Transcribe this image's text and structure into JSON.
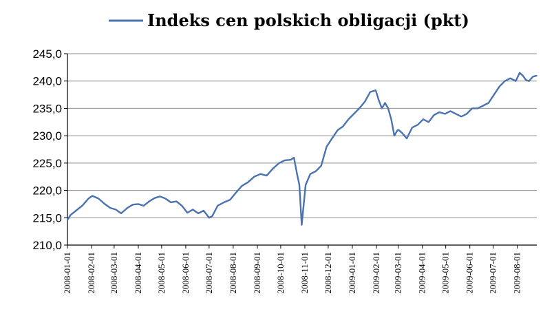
{
  "chart_data": {
    "type": "line",
    "title": "",
    "xlabel": "",
    "ylabel": "",
    "ylim": [
      210.0,
      245.0
    ],
    "y_ticks": [
      "210,0",
      "215,0",
      "220,0",
      "225,0",
      "230,0",
      "235,0",
      "240,0",
      "245,0"
    ],
    "x_ticks": [
      "2008-01-01",
      "2008-02-01",
      "2008-03-01",
      "2008-04-01",
      "2008-05-01",
      "2008-06-01",
      "2008-07-01",
      "2008-08-01",
      "2008-09-01",
      "2008-10-01",
      "2008-11-01",
      "2008-12-01",
      "2009-01-01",
      "2009-02-01",
      "2009-03-01",
      "2009-04-01",
      "2009-05-01",
      "2009-06-01",
      "2009-07-01",
      "2009-08-01"
    ],
    "grid": "horizontal",
    "legend": "top-center",
    "series": [
      {
        "name": "Indeks cen polskich obligacji (pkt)",
        "color": "#4a72b0",
        "x": [
          "2008-01-01",
          "2008-01-05",
          "2008-01-12",
          "2008-01-20",
          "2008-01-28",
          "2008-02-02",
          "2008-02-10",
          "2008-02-18",
          "2008-02-25",
          "2008-03-03",
          "2008-03-10",
          "2008-03-18",
          "2008-03-25",
          "2008-04-01",
          "2008-04-08",
          "2008-04-15",
          "2008-04-22",
          "2008-04-29",
          "2008-05-06",
          "2008-05-13",
          "2008-05-20",
          "2008-05-27",
          "2008-06-03",
          "2008-06-10",
          "2008-06-17",
          "2008-06-24",
          "2008-07-01",
          "2008-07-05",
          "2008-07-12",
          "2008-07-20",
          "2008-07-28",
          "2008-08-04",
          "2008-08-12",
          "2008-08-20",
          "2008-08-28",
          "2008-09-05",
          "2008-09-13",
          "2008-09-21",
          "2008-09-29",
          "2008-10-06",
          "2008-10-14",
          "2008-10-18",
          "2008-10-22",
          "2008-10-25",
          "2008-10-28",
          "2008-11-02",
          "2008-11-08",
          "2008-11-15",
          "2008-11-22",
          "2008-11-29",
          "2008-12-06",
          "2008-12-13",
          "2008-12-20",
          "2008-12-27",
          "2009-01-03",
          "2009-01-10",
          "2009-01-17",
          "2009-01-24",
          "2009-01-31",
          "2009-02-04",
          "2009-02-08",
          "2009-02-12",
          "2009-02-16",
          "2009-02-20",
          "2009-02-24",
          "2009-02-28",
          "2009-03-02",
          "2009-03-06",
          "2009-03-12",
          "2009-03-19",
          "2009-03-26",
          "2009-04-02",
          "2009-04-09",
          "2009-04-16",
          "2009-04-23",
          "2009-04-30",
          "2009-05-07",
          "2009-05-14",
          "2009-05-21",
          "2009-05-28",
          "2009-06-04",
          "2009-06-11",
          "2009-06-18",
          "2009-06-25",
          "2009-07-02",
          "2009-07-09",
          "2009-07-16",
          "2009-07-23",
          "2009-07-30",
          "2009-08-04",
          "2009-08-08",
          "2009-08-12",
          "2009-08-16",
          "2009-08-21",
          "2009-08-26"
        ],
        "values": [
          214.6,
          215.5,
          216.3,
          217.2,
          218.5,
          219.0,
          218.5,
          217.5,
          216.8,
          216.5,
          215.8,
          216.8,
          217.4,
          217.5,
          217.2,
          218.0,
          218.6,
          218.9,
          218.5,
          217.8,
          218.0,
          217.2,
          215.9,
          216.5,
          215.8,
          216.3,
          215.0,
          215.3,
          217.2,
          217.8,
          218.3,
          219.5,
          220.8,
          221.5,
          222.5,
          223.0,
          222.7,
          224.0,
          225.0,
          225.5,
          225.6,
          226.0,
          223.0,
          221.0,
          213.7,
          221.0,
          223.0,
          223.5,
          224.5,
          228.0,
          229.5,
          231.0,
          231.7,
          233.0,
          234.0,
          235.0,
          236.2,
          238.0,
          238.3,
          236.5,
          235.0,
          236.0,
          235.0,
          233.0,
          230.0,
          231.0,
          231.0,
          230.5,
          229.5,
          231.5,
          232.0,
          233.0,
          232.5,
          233.8,
          234.3,
          234.0,
          234.5,
          234.0,
          233.5,
          234.0,
          235.0,
          235.0,
          235.5,
          236.0,
          237.5,
          239.0,
          240.0,
          240.5,
          240.0,
          241.5,
          241.0,
          240.2,
          240.0,
          240.8,
          241.0
        ]
      }
    ]
  }
}
